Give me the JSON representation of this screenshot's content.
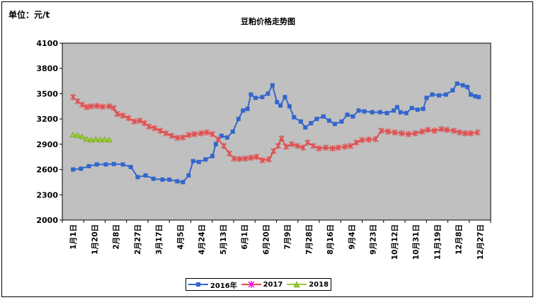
{
  "unit_label": "单位：元/t",
  "chart_data": {
    "type": "line",
    "title": "豆粕价格走势图",
    "ylim": [
      2000,
      4100
    ],
    "yticks": [
      2000,
      2300,
      2600,
      2900,
      3200,
      3500,
      3800,
      4100
    ],
    "xticks": [
      "1月1日",
      "1月20日",
      "2月8日",
      "2月27日",
      "3月17日",
      "4月5日",
      "4月24日",
      "5月13日",
      "6月1日",
      "6月20日",
      "7月9日",
      "7月28日",
      "8月16日",
      "9月4日",
      "9月23日",
      "10月12日",
      "10月31日",
      "11月19日",
      "12月8日",
      "12月27日"
    ],
    "legend_position": "bottom",
    "plot_background": "#c0c0c0",
    "series": [
      {
        "name": "2016年",
        "color": "#3366cc",
        "marker": "square",
        "points": [
          [
            1,
            2600
          ],
          [
            8,
            2610
          ],
          [
            15,
            2640
          ],
          [
            22,
            2660
          ],
          [
            30,
            2660
          ],
          [
            37,
            2665
          ],
          [
            45,
            2660
          ],
          [
            52,
            2630
          ],
          [
            58,
            2510
          ],
          [
            65,
            2530
          ],
          [
            72,
            2490
          ],
          [
            80,
            2480
          ],
          [
            86,
            2480
          ],
          [
            93,
            2460
          ],
          [
            98,
            2450
          ],
          [
            103,
            2530
          ],
          [
            107,
            2700
          ],
          [
            112,
            2690
          ],
          [
            118,
            2720
          ],
          [
            124,
            2760
          ],
          [
            127,
            2900
          ],
          [
            132,
            3000
          ],
          [
            137,
            2980
          ],
          [
            142,
            3050
          ],
          [
            147,
            3200
          ],
          [
            151,
            3300
          ],
          [
            155,
            3320
          ],
          [
            158,
            3490
          ],
          [
            162,
            3450
          ],
          [
            168,
            3460
          ],
          [
            173,
            3500
          ],
          [
            177,
            3600
          ],
          [
            181,
            3400
          ],
          [
            184,
            3360
          ],
          [
            188,
            3460
          ],
          [
            192,
            3350
          ],
          [
            196,
            3220
          ],
          [
            202,
            3170
          ],
          [
            206,
            3100
          ],
          [
            211,
            3150
          ],
          [
            216,
            3200
          ],
          [
            222,
            3230
          ],
          [
            227,
            3180
          ],
          [
            232,
            3140
          ],
          [
            238,
            3170
          ],
          [
            243,
            3250
          ],
          [
            248,
            3230
          ],
          [
            253,
            3300
          ],
          [
            258,
            3290
          ],
          [
            265,
            3280
          ],
          [
            272,
            3280
          ],
          [
            278,
            3270
          ],
          [
            284,
            3300
          ],
          [
            287,
            3340
          ],
          [
            290,
            3280
          ],
          [
            295,
            3270
          ],
          [
            300,
            3330
          ],
          [
            305,
            3310
          ],
          [
            310,
            3320
          ],
          [
            313,
            3450
          ],
          [
            318,
            3490
          ],
          [
            324,
            3480
          ],
          [
            330,
            3490
          ],
          [
            336,
            3540
          ],
          [
            340,
            3620
          ],
          [
            345,
            3600
          ],
          [
            349,
            3580
          ],
          [
            352,
            3490
          ],
          [
            356,
            3470
          ],
          [
            359,
            3460
          ]
        ]
      },
      {
        "name": "2017",
        "color": "#e05050",
        "marker": "asterisk",
        "points": [
          [
            1,
            3460
          ],
          [
            5,
            3410
          ],
          [
            9,
            3370
          ],
          [
            13,
            3340
          ],
          [
            17,
            3350
          ],
          [
            22,
            3355
          ],
          [
            27,
            3345
          ],
          [
            33,
            3350
          ],
          [
            37,
            3330
          ],
          [
            40,
            3260
          ],
          [
            45,
            3240
          ],
          [
            50,
            3210
          ],
          [
            55,
            3170
          ],
          [
            60,
            3180
          ],
          [
            64,
            3150
          ],
          [
            68,
            3110
          ],
          [
            73,
            3090
          ],
          [
            78,
            3060
          ],
          [
            83,
            3030
          ],
          [
            88,
            3000
          ],
          [
            93,
            2975
          ],
          [
            98,
            2980
          ],
          [
            103,
            3010
          ],
          [
            108,
            3020
          ],
          [
            114,
            3030
          ],
          [
            119,
            3040
          ],
          [
            124,
            3020
          ],
          [
            129,
            2960
          ],
          [
            134,
            2880
          ],
          [
            139,
            2790
          ],
          [
            143,
            2730
          ],
          [
            148,
            2725
          ],
          [
            153,
            2730
          ],
          [
            158,
            2740
          ],
          [
            163,
            2750
          ],
          [
            168,
            2710
          ],
          [
            174,
            2720
          ],
          [
            178,
            2820
          ],
          [
            182,
            2880
          ],
          [
            185,
            2970
          ],
          [
            189,
            2870
          ],
          [
            194,
            2900
          ],
          [
            199,
            2880
          ],
          [
            204,
            2860
          ],
          [
            208,
            2920
          ],
          [
            213,
            2880
          ],
          [
            218,
            2850
          ],
          [
            224,
            2860
          ],
          [
            230,
            2850
          ],
          [
            235,
            2860
          ],
          [
            241,
            2870
          ],
          [
            246,
            2880
          ],
          [
            251,
            2920
          ],
          [
            256,
            2950
          ],
          [
            262,
            2955
          ],
          [
            268,
            2960
          ],
          [
            273,
            3060
          ],
          [
            279,
            3050
          ],
          [
            285,
            3040
          ],
          [
            291,
            3030
          ],
          [
            297,
            3020
          ],
          [
            303,
            3030
          ],
          [
            309,
            3050
          ],
          [
            314,
            3070
          ],
          [
            320,
            3060
          ],
          [
            326,
            3080
          ],
          [
            331,
            3070
          ],
          [
            337,
            3060
          ],
          [
            342,
            3040
          ],
          [
            347,
            3030
          ],
          [
            352,
            3030
          ],
          [
            358,
            3040
          ]
        ]
      },
      {
        "name": "2018",
        "color": "#99cc33",
        "marker": "triangle",
        "points": [
          [
            1,
            3010
          ],
          [
            5,
            3005
          ],
          [
            9,
            2990
          ],
          [
            13,
            2960
          ],
          [
            17,
            2950
          ],
          [
            21,
            2960
          ],
          [
            25,
            2950
          ],
          [
            29,
            2955
          ],
          [
            33,
            2950
          ]
        ]
      }
    ]
  }
}
